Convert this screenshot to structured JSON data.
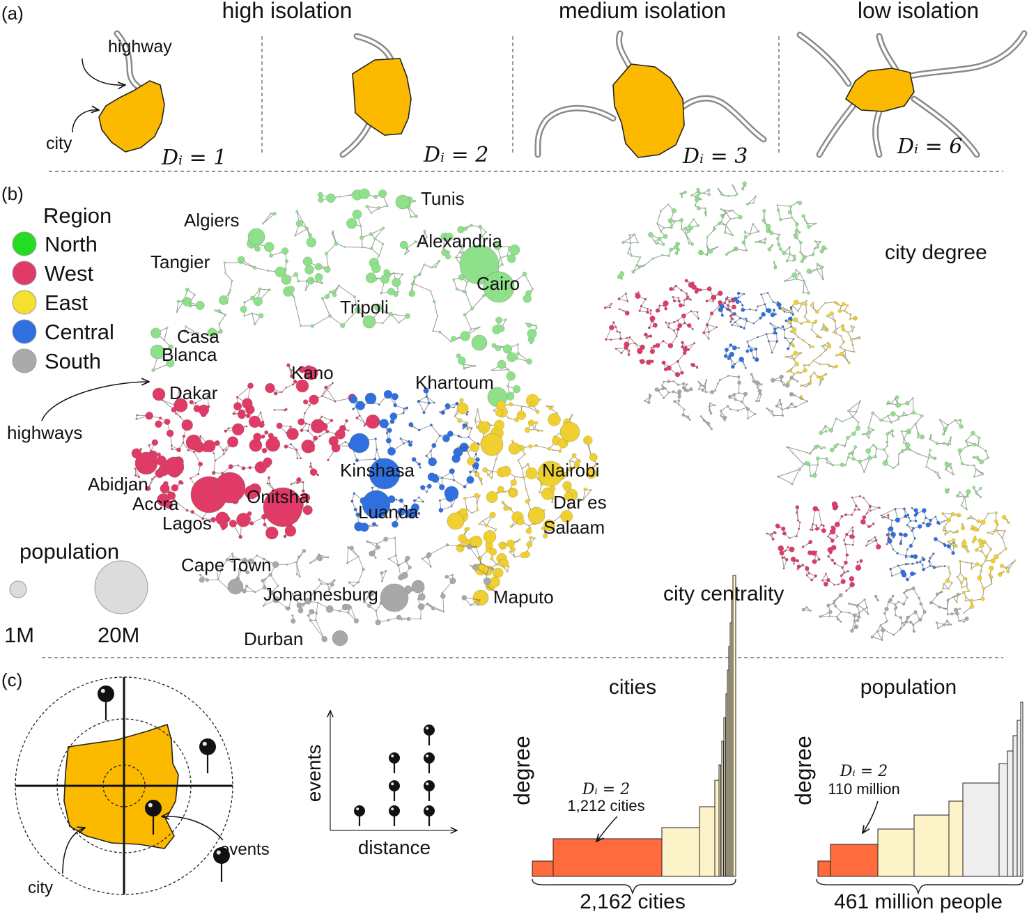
{
  "panel_a": {
    "tag": "(a)",
    "titles": [
      "high isolation",
      "medium isolation",
      "low isolation"
    ],
    "label_highway": "highway",
    "label_city": "city",
    "degrees": [
      "Dᵢ = 1",
      "Dᵢ = 2",
      "Dᵢ = 3",
      "Dᵢ = 6"
    ]
  },
  "panel_b": {
    "tag": "(b)",
    "legend_title": "Region",
    "regions": [
      {
        "name": "North",
        "color": "#8fe08a"
      },
      {
        "name": "West",
        "color": "#e03a66"
      },
      {
        "name": "East",
        "color": "#f0d030"
      },
      {
        "name": "Central",
        "color": "#2f6fe0"
      },
      {
        "name": "South",
        "color": "#a8a8a8"
      }
    ],
    "legend_swatch_colors": [
      "#22dd22",
      "#e03a66",
      "#f5e030",
      "#2f6fe0",
      "#aaaaaa"
    ],
    "cities": [
      "Tunis",
      "Algiers",
      "Alexandria",
      "Tangier",
      "Cairo",
      "Tripoli",
      "Casa",
      "Blanca",
      "Kano",
      "Khartoum",
      "Dakar",
      "Kinshasa",
      "Nairobi",
      "Abidjan",
      "Accra",
      "Onitsha",
      "Dar es",
      "Salaam",
      "Lagos",
      "Luanda",
      "Cape Town",
      "Johannesburg",
      "Maputo",
      "Durban"
    ],
    "label_highways": "highways",
    "population_title": "population",
    "population_scale": [
      "1M",
      "20M"
    ],
    "label_city_degree": "city degree",
    "label_city_centrality": "city centrality"
  },
  "panel_c": {
    "tag": "(c)",
    "label_city": "city",
    "label_events": "events",
    "axis_y": "events",
    "axis_x": "distance",
    "cities_chart": {
      "title": "cities",
      "ylabel": "degree",
      "annotation_line1": "Dᵢ = 2",
      "annotation_line2": "1,212 cities",
      "total": "2,162 cities"
    },
    "population_chart": {
      "title": "population",
      "ylabel": "degree",
      "annotation_line1": "Dᵢ = 2",
      "annotation_line2": "110 million",
      "total": "461 million people"
    },
    "colors": {
      "city": "#fbb900",
      "highlight": "#ff6b3d",
      "pale": "#fdf3c8",
      "grey": "#eeeeee"
    }
  }
}
